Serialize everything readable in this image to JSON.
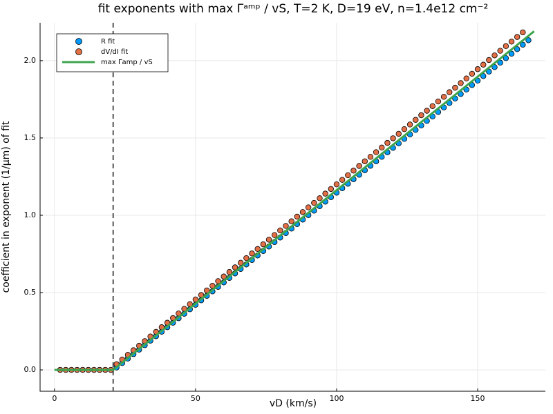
{
  "chart_data": {
    "type": "scatter",
    "title": "fit exponents with max Γᵃᵐᵖ / vS, T=2 K, D=19 eV, n=1.4e12 cm⁻²",
    "x_label": "vD (km/s)",
    "y_label": "coefficient in exponent (1/μm) of fit",
    "xlim": [
      -5.1,
      174
    ],
    "ylim": [
      -0.138,
      2.245
    ],
    "xticks": [
      0,
      50,
      100,
      150
    ],
    "yticks": [
      {
        "value": 0,
        "label": "0.0"
      },
      0.5,
      {
        "value": 1,
        "label": "1.0"
      },
      1.5,
      {
        "value": 2,
        "label": "2.0"
      }
    ],
    "grid": true,
    "legend": "top-left",
    "vline": 20.8,
    "series": [
      {
        "name": "R fit",
        "type": "scatter",
        "color": "#009afa",
        "x": [
          2,
          4,
          6,
          8,
          10,
          12,
          14,
          16,
          18,
          20,
          22,
          24,
          26,
          28,
          30,
          32,
          34,
          36,
          38,
          40,
          42,
          44,
          46,
          48,
          50,
          52,
          54,
          56,
          58,
          60,
          62,
          64,
          66,
          68,
          70,
          72,
          74,
          76,
          78,
          80,
          82,
          84,
          86,
          88,
          90,
          92,
          94,
          96,
          98,
          100,
          102,
          104,
          106,
          108,
          110,
          112,
          114,
          116,
          118,
          120,
          122,
          124,
          126,
          128,
          130,
          132,
          134,
          136,
          138,
          140,
          142,
          144,
          146,
          148,
          150,
          152,
          154,
          156,
          158,
          160,
          162,
          164,
          166,
          168
        ],
        "values": [
          0,
          0,
          0,
          0,
          0,
          0,
          0,
          0,
          0,
          0,
          0.015,
          0.044,
          0.073,
          0.102,
          0.131,
          0.16,
          0.189,
          0.218,
          0.247,
          0.276,
          0.305,
          0.334,
          0.363,
          0.392,
          0.421,
          0.45,
          0.479,
          0.508,
          0.537,
          0.566,
          0.595,
          0.624,
          0.653,
          0.682,
          0.711,
          0.74,
          0.769,
          0.798,
          0.827,
          0.856,
          0.885,
          0.914,
          0.943,
          0.972,
          1.001,
          1.03,
          1.059,
          1.088,
          1.117,
          1.146,
          1.175,
          1.204,
          1.233,
          1.262,
          1.291,
          1.32,
          1.349,
          1.378,
          1.407,
          1.436,
          1.465,
          1.494,
          1.523,
          1.552,
          1.581,
          1.61,
          1.639,
          1.668,
          1.697,
          1.726,
          1.755,
          1.784,
          1.813,
          1.842,
          1.871,
          1.9,
          1.929,
          1.958,
          1.987,
          2.016,
          2.045,
          2.074,
          2.103,
          2.132
        ]
      },
      {
        "name": "dV/dI fit",
        "type": "scatter",
        "color": "#e26f46",
        "x": [
          2,
          4,
          6,
          8,
          10,
          12,
          14,
          16,
          18,
          20,
          22,
          24,
          26,
          28,
          30,
          32,
          34,
          36,
          38,
          40,
          42,
          44,
          46,
          48,
          50,
          52,
          54,
          56,
          58,
          60,
          62,
          64,
          66,
          68,
          70,
          72,
          74,
          76,
          78,
          80,
          82,
          84,
          86,
          88,
          90,
          92,
          94,
          96,
          98,
          100,
          102,
          104,
          106,
          108,
          110,
          112,
          114,
          116,
          118,
          120,
          122,
          124,
          126,
          128,
          130,
          132,
          134,
          136,
          138,
          140,
          142,
          144,
          146,
          148,
          150,
          152,
          154,
          156,
          158,
          160,
          162,
          164,
          166
        ],
        "values": [
          0,
          0,
          0,
          0,
          0,
          0,
          0,
          0,
          0,
          0,
          0.037,
          0.067,
          0.097,
          0.127,
          0.156,
          0.186,
          0.216,
          0.246,
          0.276,
          0.305,
          0.335,
          0.365,
          0.395,
          0.425,
          0.455,
          0.484,
          0.514,
          0.544,
          0.574,
          0.604,
          0.633,
          0.663,
          0.693,
          0.723,
          0.753,
          0.782,
          0.812,
          0.842,
          0.872,
          0.902,
          0.931,
          0.961,
          0.991,
          1.021,
          1.051,
          1.08,
          1.11,
          1.14,
          1.17,
          1.2,
          1.229,
          1.259,
          1.289,
          1.319,
          1.349,
          1.378,
          1.408,
          1.438,
          1.468,
          1.498,
          1.527,
          1.557,
          1.587,
          1.617,
          1.647,
          1.676,
          1.706,
          1.736,
          1.766,
          1.796,
          1.825,
          1.855,
          1.885,
          1.915,
          1.945,
          1.974,
          2.004,
          2.034,
          2.064,
          2.094,
          2.123,
          2.153,
          2.183
        ]
      },
      {
        "name": "max Γamp / vS",
        "type": "line",
        "color": "#3da44d",
        "x": [
          0,
          20.8,
          170
        ],
        "values": [
          0,
          0,
          2.19
        ]
      }
    ]
  }
}
